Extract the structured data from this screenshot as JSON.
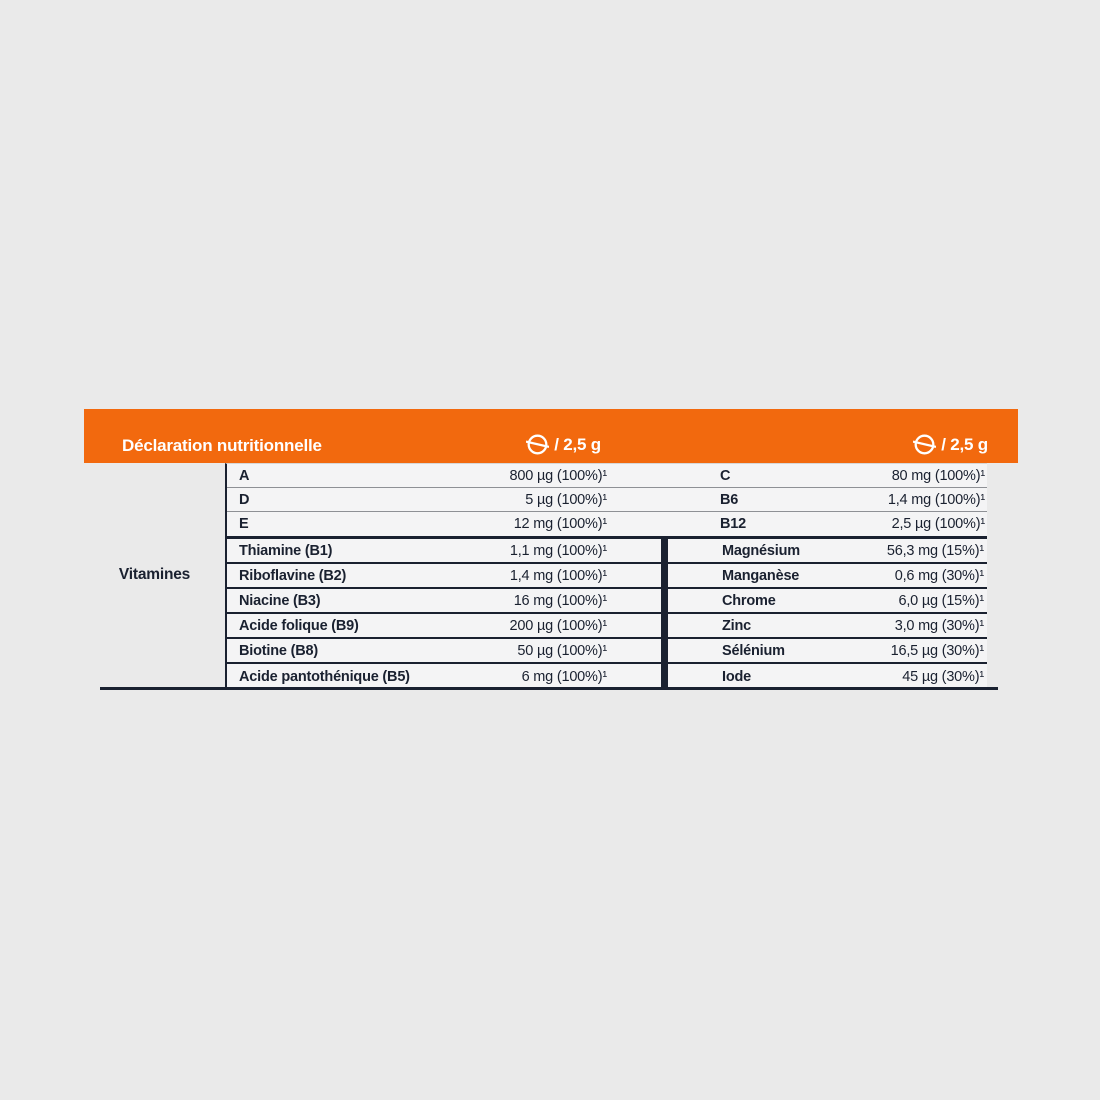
{
  "colors": {
    "accent": "#f2690e",
    "ink": "#1a2130",
    "row_background": "#f4f4f5",
    "page_background": "#eaeaea"
  },
  "header": {
    "title": "Déclaration nutritionnelle",
    "dose_center": "/ 2,5 g",
    "dose_right": "/ 2,5 g",
    "icon": "tablet-icon"
  },
  "table": {
    "group_label": "Vitamines",
    "top_rows": [
      {
        "left_label": "A",
        "left_value": "800 µg (100%)¹",
        "right_label": "C",
        "right_value": "80 mg (100%)¹"
      },
      {
        "left_label": "D",
        "left_value": "5 µg (100%)¹",
        "right_label": "B6",
        "right_value": "1,4 mg (100%)¹"
      },
      {
        "left_label": "E",
        "left_value": "12 mg (100%)¹",
        "right_label": "B12",
        "right_value": "2,5 µg (100%)¹"
      }
    ],
    "left_rows": [
      {
        "label": "Thiamine (B1)",
        "value": "1,1 mg (100%)¹"
      },
      {
        "label": "Riboflavine (B2)",
        "value": "1,4 mg (100%)¹"
      },
      {
        "label": "Niacine (B3)",
        "value": "16 mg (100%)¹"
      },
      {
        "label": "Acide folique (B9)",
        "value": "200 µg (100%)¹"
      },
      {
        "label": "Biotine (B8)",
        "value": "50 µg (100%)¹"
      },
      {
        "label": "Acide pantothénique (B5)",
        "value": "6 mg (100%)¹"
      }
    ],
    "right_rows": [
      {
        "label": "Magnésium",
        "value": "56,3 mg (15%)¹"
      },
      {
        "label": "Manganèse",
        "value": "0,6 mg (30%)¹"
      },
      {
        "label": "Chrome",
        "value": "6,0 µg (15%)¹"
      },
      {
        "label": "Zinc",
        "value": "3,0 mg (30%)¹"
      },
      {
        "label": "Sélénium",
        "value": "16,5 µg (30%)¹"
      },
      {
        "label": "Iode",
        "value": "45 µg (30%)¹"
      }
    ]
  }
}
